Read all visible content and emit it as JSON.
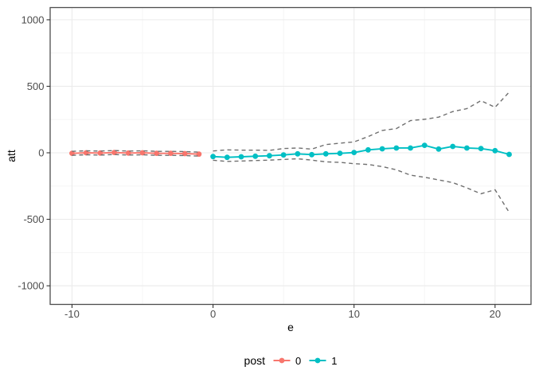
{
  "chart_data": {
    "type": "line",
    "title": "",
    "xlabel": "e",
    "ylabel": "att",
    "x_ticks": [
      -10,
      0,
      10,
      20
    ],
    "y_ticks": [
      -1000,
      -500,
      0,
      500,
      1000
    ],
    "xlim": [
      -11.55,
      22.55
    ],
    "ylim": [
      -1140,
      1092
    ],
    "grid": true,
    "legend": {
      "title": "post",
      "position": "bottom",
      "entries": [
        {
          "label": "0",
          "color": "#F8766D"
        },
        {
          "label": "1",
          "color": "#00BFC4"
        }
      ]
    },
    "series": [
      {
        "name": "post-0-att",
        "legend": "0",
        "type": "line+marker",
        "color": "#F8766D",
        "x": [
          -10,
          -9,
          -8,
          -7,
          -6,
          -5,
          -4,
          -3,
          -2,
          -1
        ],
        "y": [
          -4,
          0,
          -2,
          2,
          -2,
          0,
          -4,
          -4,
          -6,
          -10
        ]
      },
      {
        "name": "post-0-ci-upper",
        "type": "dashed",
        "color": "#6F6F6F",
        "x": [
          -10,
          -9,
          -8,
          -7,
          -6,
          -5,
          -4,
          -3,
          -2,
          -1
        ],
        "y": [
          11,
          15,
          13,
          17,
          13,
          15,
          11,
          11,
          9,
          5
        ]
      },
      {
        "name": "post-0-ci-lower",
        "type": "dashed",
        "color": "#6F6F6F",
        "x": [
          -10,
          -9,
          -8,
          -7,
          -6,
          -5,
          -4,
          -3,
          -2,
          -1
        ],
        "y": [
          -19,
          -15,
          -17,
          -13,
          -17,
          -15,
          -19,
          -19,
          -21,
          -25
        ]
      },
      {
        "name": "post-1-att",
        "legend": "1",
        "type": "line+marker",
        "color": "#00BFC4",
        "x": [
          0,
          1,
          2,
          3,
          4,
          5,
          6,
          7,
          8,
          9,
          10,
          11,
          12,
          13,
          14,
          15,
          16,
          17,
          18,
          19,
          20,
          21
        ],
        "y": [
          -28,
          -34,
          -30,
          -26,
          -22,
          -16,
          -8,
          -14,
          -8,
          -4,
          2,
          22,
          30,
          36,
          36,
          56,
          28,
          48,
          36,
          32,
          16,
          -12
        ]
      },
      {
        "name": "post-1-ci-upper",
        "type": "dashed",
        "color": "#6F6F6F",
        "x": [
          0,
          1,
          2,
          3,
          4,
          5,
          6,
          7,
          8,
          9,
          10,
          11,
          12,
          13,
          14,
          15,
          16,
          17,
          18,
          19,
          20,
          21
        ],
        "y": [
          14,
          22,
          20,
          20,
          18,
          32,
          36,
          28,
          62,
          72,
          82,
          122,
          168,
          182,
          242,
          252,
          268,
          310,
          332,
          392,
          342,
          456
        ]
      },
      {
        "name": "post-1-ci-lower",
        "type": "dashed",
        "color": "#6F6F6F",
        "x": [
          0,
          1,
          2,
          3,
          4,
          5,
          6,
          7,
          8,
          9,
          10,
          11,
          12,
          13,
          14,
          15,
          16,
          17,
          18,
          19,
          20,
          21
        ],
        "y": [
          -56,
          -65,
          -62,
          -58,
          -55,
          -50,
          -45,
          -55,
          -68,
          -72,
          -82,
          -88,
          -104,
          -128,
          -168,
          -184,
          -204,
          -224,
          -264,
          -308,
          -278,
          -448
        ]
      }
    ]
  },
  "colors": {
    "background": "#FFFFFF",
    "panel_background": "#FFFFFF",
    "grid_major": "#EBEBEB",
    "grid_minor": "#F5F5F5",
    "panel_border": "#4D4D4D",
    "tick_mark": "#333333",
    "tick_label": "#4D4D4D",
    "axis_title": "#000000",
    "ci_dash": "#6F6F6F"
  }
}
